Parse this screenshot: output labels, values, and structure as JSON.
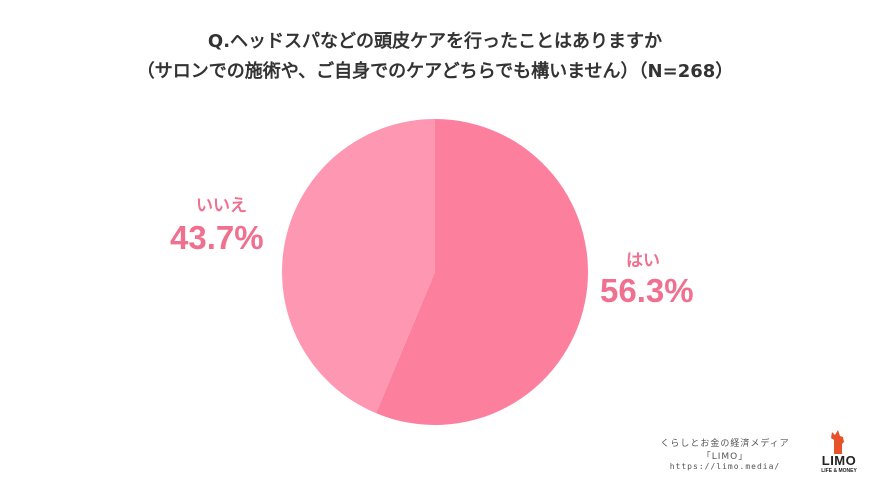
{
  "chart_data": {
    "type": "pie",
    "title": "Q.ヘッドスパなどの頭皮ケアを行ったことはありますか",
    "subtitle": "（サロンでの施術や、ご自身でのケアどちらでも構いません）（N=268）",
    "slices": [
      {
        "label": "はい",
        "value": 56.3,
        "value_label": "56.3%",
        "color": "#fd7f9e"
      },
      {
        "label": "いいえ",
        "value": 43.7,
        "value_label": "43.7%",
        "color": "#fd97b2"
      }
    ],
    "label_color": "#f07090",
    "start_angle_deg": 0,
    "direction": "clockwise"
  },
  "footer": {
    "tagline": "くらしとお金の経済メディア",
    "brand": "「LIMO」",
    "url": "https://limo.media/"
  },
  "logo": {
    "word": "LIMO",
    "sub": "LIFE & MONEY",
    "accent_color": "#e8522a"
  }
}
